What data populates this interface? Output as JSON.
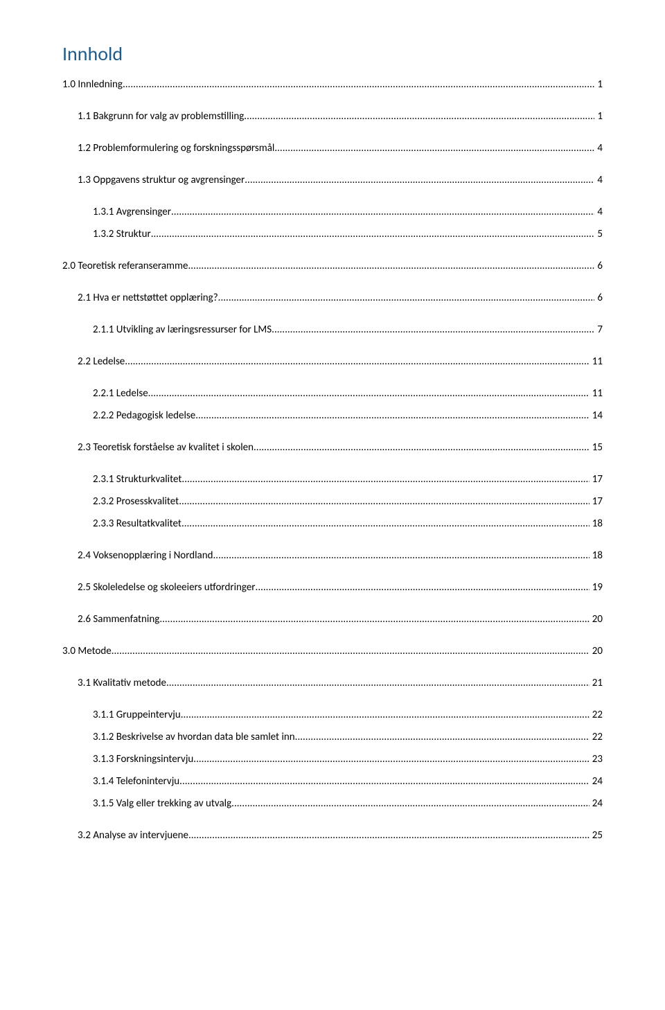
{
  "title": "Innhold",
  "colors": {
    "title": "#1f5c8b",
    "text": "#000000",
    "background": "#ffffff"
  },
  "entries": [
    {
      "label": "1.0 Innledning",
      "page": "1",
      "level": 0,
      "spacing": "large"
    },
    {
      "label": "1.1 Bakgrunn for valg av problemstilling",
      "page": "1",
      "level": 1,
      "spacing": "large"
    },
    {
      "label": "1.2 Problemformulering og forskningsspørsmål",
      "page": "4",
      "level": 1,
      "spacing": "large"
    },
    {
      "label": "1.3 Oppgavens struktur og avgrensinger",
      "page": "4",
      "level": 1,
      "spacing": "large"
    },
    {
      "label": "1.3.1 Avgrensinger",
      "page": "4",
      "level": 2,
      "spacing": "normal"
    },
    {
      "label": "1.3.2 Struktur",
      "page": "5",
      "level": 2,
      "spacing": "large"
    },
    {
      "label": "2.0 Teoretisk referanseramme",
      "page": "6",
      "level": 0,
      "spacing": "large"
    },
    {
      "label": "2.1 Hva er nettstøttet opplæring?",
      "page": "6",
      "level": 1,
      "spacing": "large"
    },
    {
      "label": "2.1.1 Utvikling av læringsressurser for LMS",
      "page": "7",
      "level": 2,
      "spacing": "large"
    },
    {
      "label": "2.2 Ledelse",
      "page": "11",
      "level": 1,
      "spacing": "large"
    },
    {
      "label": "2.2.1 Ledelse",
      "page": "11",
      "level": 2,
      "spacing": "normal"
    },
    {
      "label": "2.2.2 Pedagogisk ledelse",
      "page": "14",
      "level": 2,
      "spacing": "large"
    },
    {
      "label": "2.3 Teoretisk forståelse av kvalitet i skolen",
      "page": "15",
      "level": 1,
      "spacing": "large"
    },
    {
      "label": "2.3.1 Strukturkvalitet",
      "page": "17",
      "level": 2,
      "spacing": "normal"
    },
    {
      "label": "2.3.2 Prosesskvalitet",
      "page": "17",
      "level": 2,
      "spacing": "normal"
    },
    {
      "label": "2.3.3 Resultatkvalitet",
      "page": "18",
      "level": 2,
      "spacing": "large"
    },
    {
      "label": "2.4 Voksenopplæring i Nordland",
      "page": "18",
      "level": 1,
      "spacing": "large"
    },
    {
      "label": "2.5 Skoleledelse og skoleeiers utfordringer",
      "page": "19",
      "level": 1,
      "spacing": "large"
    },
    {
      "label": "2.6 Sammenfatning",
      "page": "20",
      "level": 1,
      "spacing": "large"
    },
    {
      "label": "3.0 Metode",
      "page": "20",
      "level": 0,
      "spacing": "large"
    },
    {
      "label": "3.1 Kvalitativ metode",
      "page": "21",
      "level": 1,
      "spacing": "large"
    },
    {
      "label": "3.1.1 Gruppeintervju",
      "page": "22",
      "level": 2,
      "spacing": "normal"
    },
    {
      "label": "3.1.2 Beskrivelse av hvordan data ble samlet inn",
      "page": "22",
      "level": 2,
      "spacing": "normal"
    },
    {
      "label": "3.1.3 Forskningsintervju",
      "page": "23",
      "level": 2,
      "spacing": "normal"
    },
    {
      "label": "3.1.4 Telefonintervju",
      "page": "24",
      "level": 2,
      "spacing": "normal"
    },
    {
      "label": "3.1.5 Valg eller trekking av utvalg",
      "page": "24",
      "level": 2,
      "spacing": "large"
    },
    {
      "label": "3.2 Analyse av intervjuene",
      "page": "25",
      "level": 1,
      "spacing": "large"
    }
  ]
}
